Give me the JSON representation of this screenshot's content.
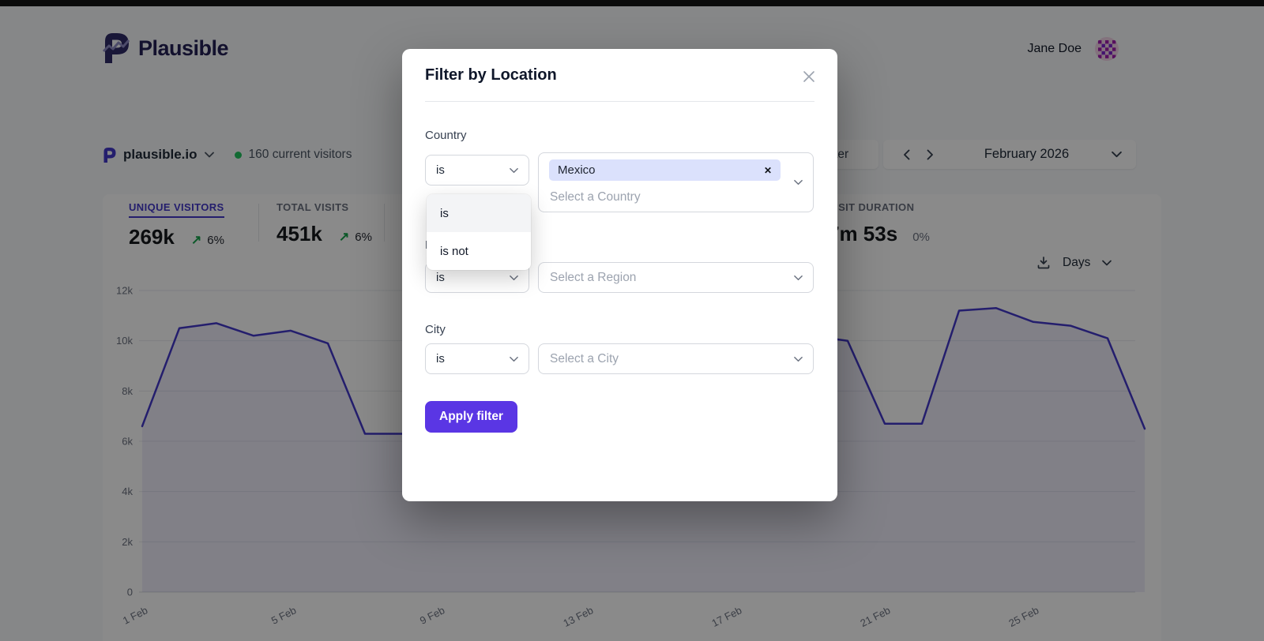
{
  "header": {
    "brand": "Plausible",
    "user_name": "Jane Doe"
  },
  "site_bar": {
    "site_name": "plausible.io",
    "current_visitors": "160 current visitors",
    "filter_button_label": "Filter",
    "date_range_label": "February 2026"
  },
  "stats": {
    "items": [
      {
        "label": "UNIQUE VISITORS",
        "value": "269k",
        "arrow": "↗",
        "change": "6%"
      },
      {
        "label": "TOTAL VISITS",
        "value": "451k",
        "arrow": "↗",
        "change": "6%"
      },
      {
        "label": "VISIT DURATION",
        "value": "7m 53s",
        "arrow": "",
        "change": "0%"
      }
    ]
  },
  "interval_selector": {
    "label": "Days"
  },
  "chart_data": {
    "type": "line",
    "title": "",
    "xlabel": "",
    "ylabel": "",
    "x_labels": [
      "1 Feb",
      "5 Feb",
      "9 Feb",
      "13 Feb",
      "17 Feb",
      "21 Feb",
      "25 Feb"
    ],
    "x_label_days": [
      1,
      5,
      9,
      13,
      17,
      21,
      25
    ],
    "days_in_month": 28,
    "series": [
      {
        "name": "Unique visitors",
        "values": [
          6600,
          10500,
          10700,
          10200,
          10400,
          9900,
          6300,
          6300,
          6500,
          7200,
          8300,
          9300,
          10000,
          10300,
          10500,
          10600,
          10500,
          10400,
          10200,
          10000,
          6700,
          6700,
          11200,
          11300,
          10750,
          10600,
          10100,
          6500
        ]
      }
    ],
    "ylim": [
      0,
      12000
    ],
    "yticks": [
      0,
      2000,
      4000,
      6000,
      8000,
      10000,
      12000
    ],
    "ytick_labels": [
      "0",
      "2k",
      "4k",
      "6k",
      "8k",
      "10k",
      "12k"
    ],
    "line_color": "#4338ca",
    "fill_color": "rgba(67,56,202,0.09)",
    "grid": true,
    "legend": "none"
  },
  "modal": {
    "title": "Filter by Location",
    "sections": {
      "country": {
        "label": "Country",
        "operator": "is",
        "operator_options": [
          "is",
          "is not"
        ],
        "selected_value": "Mexico",
        "placeholder": "Select a Country"
      },
      "region": {
        "label": "Region",
        "operator": "is",
        "placeholder": "Select a Region"
      },
      "city": {
        "label": "City",
        "operator": "is",
        "placeholder": "Select a City"
      }
    },
    "apply_button_label": "Apply filter"
  },
  "icons": {
    "remove_tag": "✕"
  },
  "colors": {
    "accent": "#4338ca",
    "apply_button": "#5a36e4",
    "tag_bg": "#dbe1fc",
    "trend_green": "#16a34a",
    "live_dot": "#22c55e",
    "overlay": "rgba(0,0,0,0.46)"
  }
}
